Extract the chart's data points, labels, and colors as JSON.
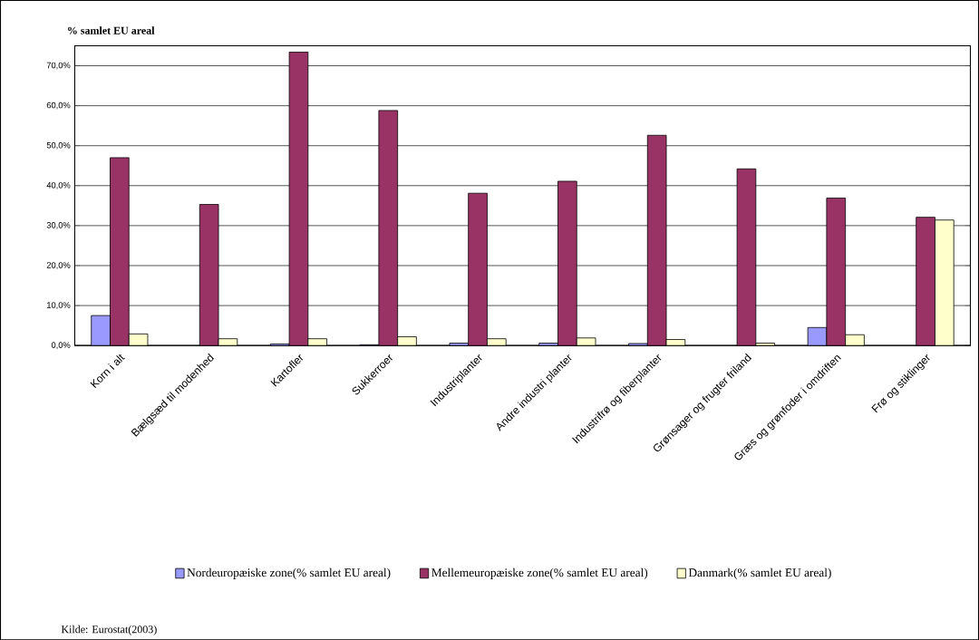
{
  "chart_data": {
    "type": "bar",
    "title": "% samlet EU areal",
    "categories": [
      "Korn i alt",
      "Bælgsæd til  modenhed",
      "Kartofler",
      "Sukkerroer",
      "Industriplanter",
      "Andre industri  planter",
      "Industrifrø og fiberplanter",
      "Grønsager og frugter friland",
      "Græs og grønfoder i omdriften",
      "Frø og stiklinger"
    ],
    "series": [
      {
        "name": "Nordeuropæiske zone(% samlet EU areal)",
        "color": "#9999ff",
        "values": [
          7.5,
          null,
          0.4,
          0.2,
          0.6,
          0.6,
          0.5,
          null,
          4.5,
          null
        ]
      },
      {
        "name": "Mellemeuropæiske zone(% samlet EU areal)",
        "color": "#993366",
        "values": [
          47.0,
          35.3,
          73.4,
          58.8,
          38.1,
          41.1,
          52.6,
          44.2,
          36.9,
          32.1
        ]
      },
      {
        "name": "Danmark(% samlet EU areal)",
        "color": "#ffffcc",
        "values": [
          2.9,
          1.7,
          1.7,
          2.2,
          1.7,
          1.9,
          1.5,
          0.6,
          2.7,
          31.4
        ]
      }
    ],
    "ylim": [
      0,
      75
    ],
    "yticks": [
      {
        "value": 0,
        "label": "0,0%"
      },
      {
        "value": 10,
        "label": "10,0%"
      },
      {
        "value": 20,
        "label": "20,0%"
      },
      {
        "value": 30,
        "label": "30,0%"
      },
      {
        "value": 40,
        "label": "40,0%"
      },
      {
        "value": 50,
        "label": "50,0%"
      },
      {
        "value": 60,
        "label": "60,0%"
      },
      {
        "value": 70,
        "label": "70,0%"
      }
    ],
    "grid": "y",
    "legend": "bottom",
    "annotations": [
      "Kilde: Eurostat(2003)"
    ]
  }
}
